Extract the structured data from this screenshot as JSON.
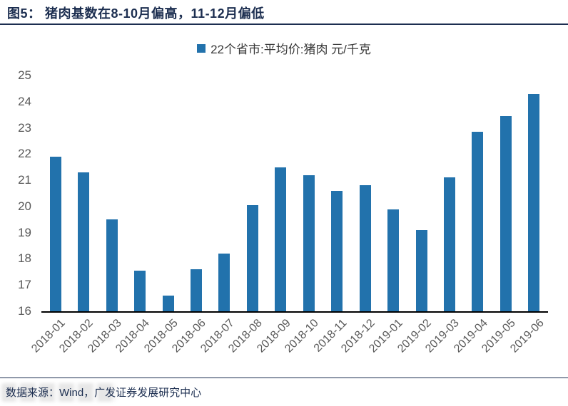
{
  "figure": {
    "title": "图5： 猪肉基数在8-10月偏高，11-12月偏低",
    "source_note": "数据来源：Wind，广发证券发展研究中心"
  },
  "chart_data": {
    "type": "bar",
    "title": "图5： 猪肉基数在8-10月偏高，11-12月偏低",
    "legend": "22个省市:平均价:猪肉 元/千克",
    "legend_position": "top-center",
    "categories": [
      "2018-01",
      "2018-02",
      "2018-03",
      "2018-04",
      "2018-05",
      "2018-06",
      "2018-07",
      "2018-08",
      "2018-09",
      "2018-10",
      "2018-11",
      "2018-12",
      "2019-01",
      "2019-02",
      "2019-03",
      "2019-04",
      "2019-05",
      "2019-06"
    ],
    "values": [
      21.9,
      21.3,
      19.5,
      17.55,
      16.6,
      17.6,
      18.2,
      20.05,
      21.5,
      21.2,
      20.6,
      20.8,
      19.9,
      19.1,
      21.1,
      22.85,
      23.45,
      24.3
    ],
    "xlabel": "",
    "ylabel": "",
    "ylim": [
      16,
      25
    ],
    "yticks": [
      16,
      17,
      18,
      19,
      20,
      21,
      22,
      23,
      24,
      25
    ],
    "grid": false,
    "xlabel_rotation": -45,
    "bar_color": "#2272ac"
  },
  "colors": {
    "accent_navy": "#1c2e50",
    "bar_blue": "#2272ac",
    "tick_gray": "#595959",
    "axis_black": "#000000"
  }
}
